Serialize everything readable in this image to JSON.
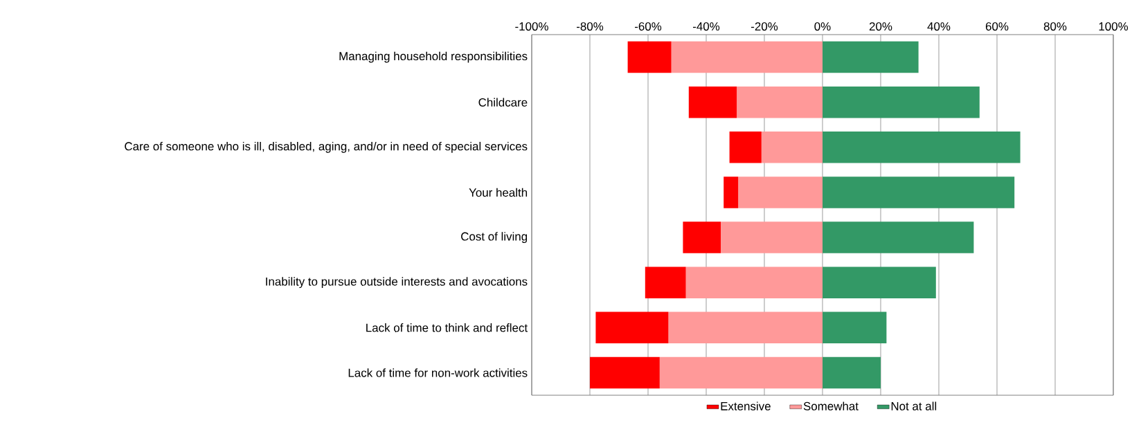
{
  "chart_data": {
    "type": "bar",
    "orientation": "horizontal",
    "stacked": true,
    "categories": [
      "Managing household responsibilities",
      "Childcare",
      "Care of someone who is ill, disabled, aging, and/or in need of special services",
      "Your health",
      "Cost of living",
      "Inability to pursue outside interests and avocations",
      "Lack of time to think and reflect",
      "Lack of time for non-work activities"
    ],
    "series": [
      {
        "name": "Somewhat",
        "color": "#ff9999",
        "values": [
          -52,
          -29.5,
          -21,
          -29,
          -35,
          -47,
          -53,
          -56
        ]
      },
      {
        "name": "Extensive",
        "color": "#ff0000",
        "values": [
          -15,
          -16.5,
          -11,
          -5,
          -13,
          -14,
          -25,
          -24
        ]
      },
      {
        "name": "Not at all",
        "color": "#339966",
        "values": [
          33,
          54,
          68,
          66,
          52,
          39,
          22,
          20
        ]
      }
    ],
    "xlim": [
      -100,
      100
    ],
    "xticks": [
      {
        "value": -100,
        "label": "-100%"
      },
      {
        "value": -80,
        "label": "-80%"
      },
      {
        "value": -60,
        "label": "-60%"
      },
      {
        "value": -40,
        "label": "-40%"
      },
      {
        "value": -20,
        "label": "-20%"
      },
      {
        "value": 0,
        "label": "0%"
      },
      {
        "value": 20,
        "label": "20%"
      },
      {
        "value": 40,
        "label": "40%"
      },
      {
        "value": 60,
        "label": "60%"
      },
      {
        "value": 80,
        "label": "80%"
      },
      {
        "value": 100,
        "label": "100%"
      }
    ],
    "grid": "x",
    "legend": "bottom"
  }
}
